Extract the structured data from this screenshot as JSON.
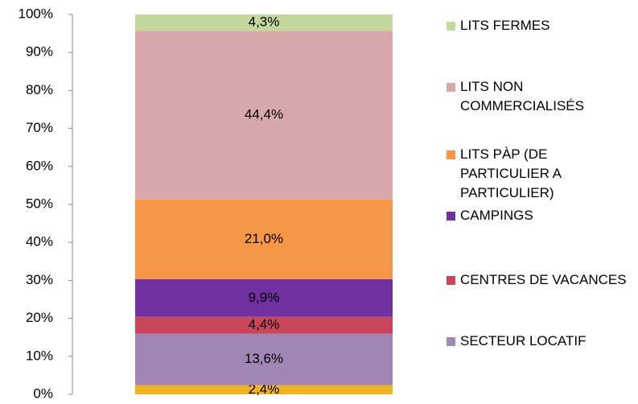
{
  "chart_data": {
    "type": "stacked-bar",
    "categories": [
      null
    ],
    "series": [
      {
        "name": null,
        "color": "#f0b323",
        "values": [
          2.4
        ],
        "value_labels": [
          "2,4%"
        ]
      },
      {
        "name": "SECTEUR LOCATIF",
        "color": "#a286b6",
        "values": [
          13.6
        ],
        "value_labels": [
          "13,6%"
        ]
      },
      {
        "name": "CENTRES DE VACANCES",
        "color": "#c9455a",
        "values": [
          4.4
        ],
        "value_labels": [
          "4,4%"
        ]
      },
      {
        "name": "CAMPINGS",
        "color": "#7030a0",
        "values": [
          9.9
        ],
        "value_labels": [
          "9,9%"
        ]
      },
      {
        "name": "LITS PÀP (DE PARTICULIER A PARTICULIER)",
        "color": "#f79646",
        "values": [
          21.0
        ],
        "value_labels": [
          "21,0%"
        ]
      },
      {
        "name": "LITS NON COMMERCIALISÉS",
        "color": "#d9a9a9",
        "values": [
          44.4
        ],
        "value_labels": [
          "44,4%"
        ]
      },
      {
        "name": "LITS FERMES",
        "color": "#c3d69b",
        "values": [
          4.3
        ],
        "value_labels": [
          "4,3%"
        ]
      }
    ],
    "ylim": [
      0,
      100
    ],
    "yticks": [
      {
        "value": 0,
        "label": "0%"
      },
      {
        "value": 10,
        "label": "10%"
      },
      {
        "value": 20,
        "label": "20%"
      },
      {
        "value": 30,
        "label": "30%"
      },
      {
        "value": 40,
        "label": "40%"
      },
      {
        "value": 50,
        "label": "50%"
      },
      {
        "value": 60,
        "label": "60%"
      },
      {
        "value": 70,
        "label": "70%"
      },
      {
        "value": 80,
        "label": "80%"
      },
      {
        "value": 90,
        "label": "90%"
      },
      {
        "value": 100,
        "label": "100%"
      }
    ],
    "legend": "right"
  }
}
